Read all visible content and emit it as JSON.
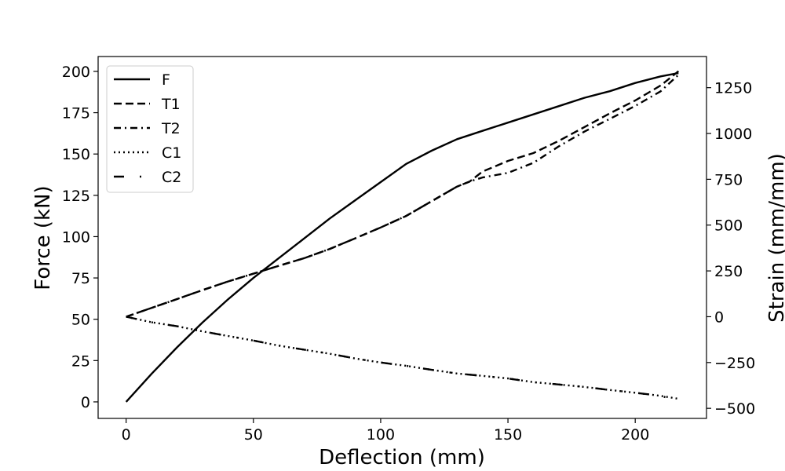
{
  "chart_data": {
    "type": "line",
    "xlabel": "Deflection (mm)",
    "ylabel": "Force (kN)",
    "y2label": "Strain (mm/mm)",
    "xlim": [
      -11,
      228
    ],
    "ylim": [
      -10,
      209
    ],
    "y2lim": [
      -555,
      1420
    ],
    "xticks": [
      0,
      50,
      100,
      150,
      200
    ],
    "yticks": [
      0,
      25,
      50,
      75,
      100,
      125,
      150,
      175,
      200
    ],
    "y2ticks": [
      -500,
      -250,
      0,
      250,
      500,
      750,
      1000,
      1250
    ],
    "legend_position": "upper left",
    "series": [
      {
        "name": "F",
        "axis": "left",
        "dash": "solid",
        "x": [
          0,
          10,
          20,
          30,
          40,
          50,
          60,
          70,
          80,
          90,
          100,
          110,
          115,
          120,
          130,
          140,
          150,
          160,
          170,
          180,
          190,
          200,
          210,
          217
        ],
        "y": [
          0,
          17,
          33,
          48,
          62,
          75,
          87,
          99,
          111,
          122,
          133,
          144,
          148,
          152,
          159,
          164,
          169,
          174,
          179,
          184,
          188,
          193,
          197,
          199
        ]
      },
      {
        "name": "T1",
        "axis": "right",
        "dash": "dashed",
        "x": [
          0,
          10,
          20,
          30,
          40,
          50,
          60,
          70,
          80,
          90,
          100,
          110,
          120,
          130,
          135,
          140,
          150,
          160,
          170,
          180,
          190,
          200,
          210,
          217
        ],
        "y": [
          0,
          48,
          96,
          145,
          192,
          235,
          278,
          320,
          370,
          428,
          487,
          550,
          630,
          710,
          738,
          792,
          850,
          893,
          960,
          1035,
          1110,
          1180,
          1262,
          1340
        ]
      },
      {
        "name": "T2",
        "axis": "right",
        "dash": "dashdot",
        "x": [
          0,
          10,
          20,
          30,
          40,
          50,
          60,
          70,
          80,
          90,
          100,
          110,
          120,
          130,
          135,
          140,
          150,
          160,
          170,
          180,
          190,
          200,
          210,
          217
        ],
        "y": [
          0,
          48,
          96,
          145,
          192,
          235,
          278,
          320,
          370,
          428,
          487,
          550,
          630,
          710,
          738,
          760,
          785,
          840,
          930,
          1010,
          1080,
          1150,
          1230,
          1320
        ]
      },
      {
        "name": "C1",
        "axis": "right",
        "dash": "dotted",
        "x": [
          0,
          10,
          20,
          30,
          40,
          50,
          60,
          70,
          80,
          90,
          100,
          110,
          120,
          130,
          140,
          150,
          160,
          170,
          180,
          190,
          200,
          210,
          217
        ],
        "y": [
          0,
          -30,
          -52,
          -80,
          -105,
          -130,
          -158,
          -180,
          -202,
          -228,
          -250,
          -268,
          -290,
          -310,
          -323,
          -337,
          -357,
          -370,
          -383,
          -400,
          -415,
          -432,
          -448
        ]
      },
      {
        "name": "C2",
        "axis": "right",
        "dash": "longdashdot",
        "x": [
          0,
          10,
          20,
          30,
          40,
          50,
          60,
          70,
          80,
          90,
          100,
          110,
          120,
          130,
          140,
          150,
          160,
          170,
          180,
          190,
          200,
          210,
          217
        ],
        "y": [
          0,
          -30,
          -52,
          -80,
          -105,
          -130,
          -158,
          -180,
          -202,
          -228,
          -250,
          -268,
          -290,
          -310,
          -323,
          -337,
          -357,
          -370,
          -383,
          -400,
          -415,
          -432,
          -460
        ]
      }
    ]
  }
}
